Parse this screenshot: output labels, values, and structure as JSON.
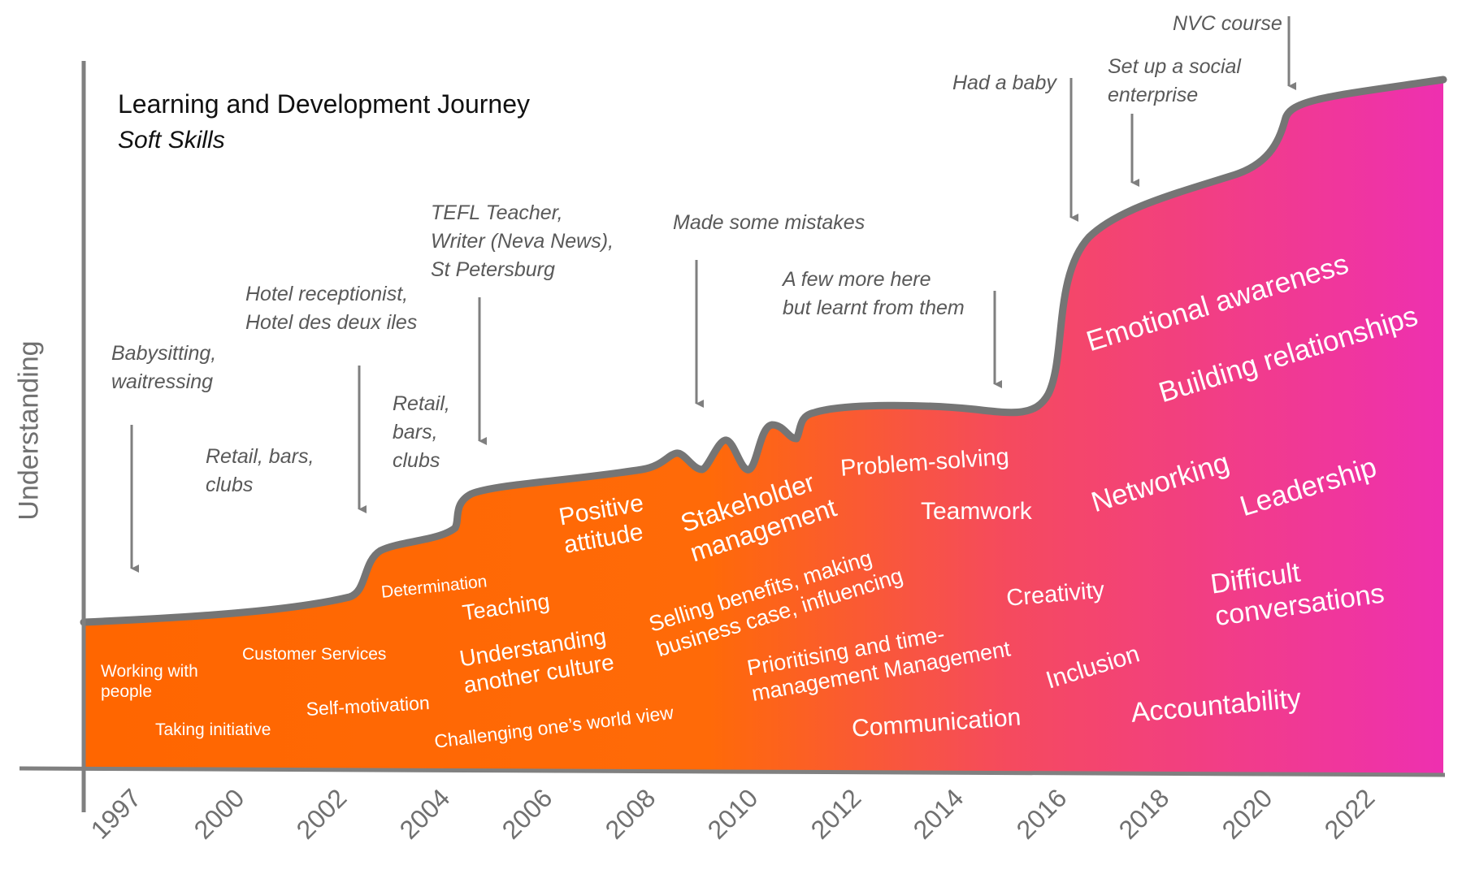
{
  "title": "Learning and Development Journey",
  "subtitle": "Soft Skills",
  "y_axis_label": "Understanding",
  "x_ticks": [
    "1997",
    "2000",
    "2002",
    "2004",
    "2006",
    "2008",
    "2010",
    "2012",
    "2014",
    "2016",
    "2018",
    "2020",
    "2022"
  ],
  "colors": {
    "start": "#ff6600",
    "end": "#ee30b0",
    "curve": "#757575",
    "axis": "#808080",
    "arrow": "#7f7f7f"
  },
  "annotations": [
    {
      "id": "babysitting",
      "text": "Babysitting,\nwaitressing"
    },
    {
      "id": "retail1",
      "text": "Retail, bars,\nclubs"
    },
    {
      "id": "hotel",
      "text": "Hotel receptionist,\nHotel des deux iles"
    },
    {
      "id": "retail2",
      "text": "Retail,\nbars,\nclubs"
    },
    {
      "id": "tefl",
      "text": "TEFL Teacher,\nWriter (Neva News),\nSt Petersburg"
    },
    {
      "id": "mistakes",
      "text": "Made some mistakes"
    },
    {
      "id": "fewmore",
      "text": "A few more here\nbut learnt from them"
    },
    {
      "id": "baby",
      "text": "Had a baby"
    },
    {
      "id": "social",
      "text": "Set up a social\nenterprise"
    },
    {
      "id": "nvc",
      "text": "NVC course"
    }
  ],
  "skills": [
    {
      "id": "working",
      "text": "Working with\npeople"
    },
    {
      "id": "initiative",
      "text": "Taking initiative"
    },
    {
      "id": "customer",
      "text": "Customer Services"
    },
    {
      "id": "selfmot",
      "text": "Self-motivation"
    },
    {
      "id": "determination",
      "text": "Determination"
    },
    {
      "id": "teaching",
      "text": "Teaching"
    },
    {
      "id": "understanding",
      "text": "Understanding\nanother culture"
    },
    {
      "id": "challenging",
      "text": "Challenging one’s world view"
    },
    {
      "id": "positive",
      "text": "Positive\nattitude"
    },
    {
      "id": "stakeholder",
      "text": "Stakeholder\nmanagement"
    },
    {
      "id": "selling",
      "text": "Selling benefits, making\nbusiness case, influencing"
    },
    {
      "id": "prioritising",
      "text": "Prioritising and time-\nmanagement Management"
    },
    {
      "id": "problem",
      "text": "Problem-solving"
    },
    {
      "id": "teamwork",
      "text": "Teamwork"
    },
    {
      "id": "communication",
      "text": "Communication"
    },
    {
      "id": "creativity",
      "text": "Creativity"
    },
    {
      "id": "inclusion",
      "text": "Inclusion"
    },
    {
      "id": "emotional",
      "text": "Emotional awareness"
    },
    {
      "id": "building",
      "text": "Building relationships"
    },
    {
      "id": "networking",
      "text": "Networking"
    },
    {
      "id": "leadership",
      "text": "Leadership"
    },
    {
      "id": "difficult",
      "text": "Difficult\nconversations"
    },
    {
      "id": "accountability",
      "text": "Accountability"
    }
  ]
}
